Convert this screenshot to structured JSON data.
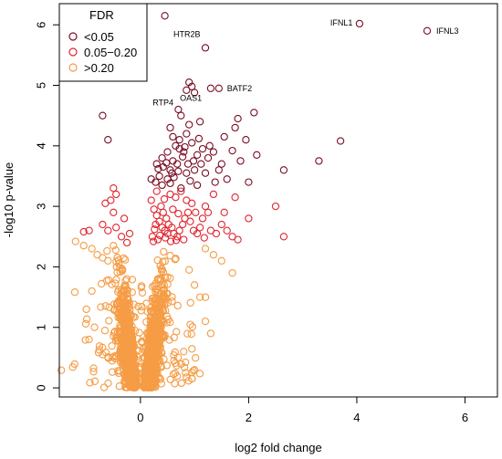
{
  "chart_data": {
    "type": "scatter",
    "title": "",
    "xlabel": "log2 fold change",
    "ylabel": "-log10 p-value",
    "xlim": [
      -1.5,
      6.6
    ],
    "ylim": [
      -0.15,
      6.35
    ],
    "xticks": [
      "0",
      "2",
      "4",
      "6"
    ],
    "yticks": [
      "0",
      "1",
      "2",
      "3",
      "4",
      "5",
      "6"
    ],
    "grid": false,
    "legend": {
      "title": "FDR",
      "position": "top-left",
      "entries": [
        {
          "label": "<0.05",
          "color": "#7a0d24"
        },
        {
          "label": "0.05−0.20",
          "color": "#e0252f"
        },
        {
          "label": ">0.20",
          "color": "#f59c45"
        }
      ]
    },
    "series": [
      {
        "name": "<0.05",
        "color": "#7a0d24",
        "points": [
          [
            0.45,
            6.15
          ],
          [
            4.05,
            6.02
          ],
          [
            5.3,
            5.9
          ],
          [
            1.2,
            5.62
          ],
          [
            0.9,
            5.05
          ],
          [
            0.95,
            4.98
          ],
          [
            0.85,
            4.92
          ],
          [
            1.0,
            4.88
          ],
          [
            1.3,
            4.95
          ],
          [
            1.45,
            4.95
          ],
          [
            0.7,
            4.6
          ],
          [
            0.75,
            4.5
          ],
          [
            2.1,
            4.55
          ],
          [
            1.8,
            4.45
          ],
          [
            1.75,
            4.3
          ],
          [
            1.1,
            4.4
          ],
          [
            0.85,
            4.2
          ],
          [
            0.9,
            4.35
          ],
          [
            0.55,
            4.3
          ],
          [
            0.6,
            4.15
          ],
          [
            3.7,
            4.08
          ],
          [
            1.95,
            4.1
          ],
          [
            1.55,
            4.15
          ],
          [
            0.65,
            4.0
          ],
          [
            0.72,
            3.95
          ],
          [
            0.8,
            3.9
          ],
          [
            0.95,
            4.05
          ],
          [
            1.05,
            3.85
          ],
          [
            0.5,
            3.9
          ],
          [
            0.4,
            3.8
          ],
          [
            0.6,
            3.75
          ],
          [
            0.78,
            3.82
          ],
          [
            0.88,
            3.7
          ],
          [
            1.15,
            3.95
          ],
          [
            1.25,
            3.8
          ],
          [
            1.35,
            3.9
          ],
          [
            2.15,
            3.85
          ],
          [
            1.85,
            3.75
          ],
          [
            3.3,
            3.75
          ],
          [
            0.3,
            3.7
          ],
          [
            0.42,
            3.65
          ],
          [
            0.55,
            3.6
          ],
          [
            0.7,
            3.58
          ],
          [
            0.85,
            3.55
          ],
          [
            1.0,
            3.6
          ],
          [
            1.12,
            3.7
          ],
          [
            1.45,
            3.6
          ],
          [
            2.65,
            3.6
          ],
          [
            0.35,
            3.5
          ],
          [
            0.5,
            3.45
          ],
          [
            0.62,
            3.48
          ],
          [
            0.92,
            3.42
          ],
          [
            1.2,
            3.55
          ],
          [
            1.6,
            3.45
          ],
          [
            0.28,
            3.4
          ],
          [
            0.4,
            3.35
          ],
          [
            0.55,
            3.38
          ],
          [
            0.75,
            3.3
          ],
          [
            1.05,
            3.35
          ],
          [
            1.38,
            3.4
          ],
          [
            2.0,
            3.4
          ],
          [
            0.2,
            3.45
          ],
          [
            0.68,
            3.7
          ],
          [
            0.98,
            3.75
          ],
          [
            1.28,
            4.0
          ],
          [
            0.72,
            4.1
          ],
          [
            -0.6,
            4.1
          ],
          [
            -0.7,
            4.5
          ],
          [
            0.82,
            3.98
          ],
          [
            1.08,
            4.12
          ],
          [
            0.58,
            3.55
          ],
          [
            1.5,
            3.7
          ],
          [
            1.7,
            3.92
          ],
          [
            0.48,
            3.72
          ],
          [
            0.33,
            3.62
          ]
        ]
      },
      {
        "name": "0.05−0.20",
        "color": "#e0252f",
        "points": [
          [
            -0.5,
            3.3
          ],
          [
            -0.45,
            3.2
          ],
          [
            -0.55,
            3.1
          ],
          [
            -0.65,
            3.05
          ],
          [
            -0.5,
            2.9
          ],
          [
            -0.7,
            2.7
          ],
          [
            -0.45,
            2.65
          ],
          [
            -0.95,
            2.6
          ],
          [
            -1.05,
            2.58
          ],
          [
            -0.3,
            2.8
          ],
          [
            -0.35,
            2.5
          ],
          [
            -0.6,
            2.6
          ],
          [
            -0.25,
            2.4
          ],
          [
            -0.2,
            2.55
          ],
          [
            0.2,
            3.1
          ],
          [
            0.25,
            2.95
          ],
          [
            0.3,
            2.85
          ],
          [
            0.35,
            2.75
          ],
          [
            0.4,
            2.65
          ],
          [
            0.45,
            2.6
          ],
          [
            0.5,
            2.55
          ],
          [
            0.22,
            2.5
          ],
          [
            0.28,
            2.7
          ],
          [
            0.32,
            2.45
          ],
          [
            0.38,
            3.0
          ],
          [
            0.42,
            2.9
          ],
          [
            0.48,
            2.8
          ],
          [
            0.52,
            2.7
          ],
          [
            0.58,
            2.65
          ],
          [
            0.62,
            2.55
          ],
          [
            0.68,
            2.5
          ],
          [
            0.72,
            2.6
          ],
          [
            0.78,
            2.7
          ],
          [
            0.82,
            2.8
          ],
          [
            0.88,
            2.9
          ],
          [
            0.92,
            2.75
          ],
          [
            0.98,
            2.6
          ],
          [
            1.05,
            2.55
          ],
          [
            1.1,
            2.65
          ],
          [
            1.15,
            2.8
          ],
          [
            1.2,
            3.0
          ],
          [
            1.25,
            2.9
          ],
          [
            1.3,
            2.6
          ],
          [
            1.4,
            2.55
          ],
          [
            1.5,
            2.7
          ],
          [
            1.55,
            2.9
          ],
          [
            1.6,
            2.6
          ],
          [
            1.7,
            2.5
          ],
          [
            1.8,
            2.45
          ],
          [
            2.0,
            2.8
          ],
          [
            2.5,
            3.0
          ],
          [
            2.65,
            2.5
          ],
          [
            1.75,
            3.15
          ],
          [
            0.55,
            3.2
          ],
          [
            0.65,
            3.15
          ],
          [
            0.75,
            3.25
          ],
          [
            0.85,
            3.1
          ],
          [
            0.95,
            3.05
          ],
          [
            1.35,
            3.2
          ],
          [
            0.3,
            3.25
          ],
          [
            0.24,
            2.42
          ],
          [
            0.36,
            2.52
          ],
          [
            0.46,
            2.48
          ],
          [
            0.56,
            2.42
          ],
          [
            0.66,
            2.44
          ],
          [
            1.18,
            2.48
          ],
          [
            0.44,
            3.12
          ],
          [
            0.6,
            2.95
          ],
          [
            0.7,
            2.88
          ],
          [
            0.8,
            2.45
          ],
          [
            1.02,
            2.9
          ],
          [
            0.26,
            2.62
          ]
        ]
      },
      {
        "name": ">0.20",
        "color": "#f59c45",
        "seed": 7,
        "count": 1800,
        "points": [
          [
            -1.2,
            2.42
          ],
          [
            -1.05,
            2.35
          ],
          [
            -0.9,
            2.3
          ],
          [
            -0.8,
            2.2
          ],
          [
            -0.7,
            2.15
          ],
          [
            -0.6,
            2.1
          ],
          [
            -0.5,
            2.35
          ],
          [
            -0.4,
            2.05
          ],
          [
            1.2,
            2.3
          ],
          [
            1.35,
            2.2
          ],
          [
            1.5,
            2.1
          ],
          [
            1.7,
            1.9
          ],
          [
            0.9,
            1.95
          ],
          [
            1.0,
            1.7
          ],
          [
            1.1,
            1.5
          ],
          [
            -0.9,
            1.6
          ],
          [
            -1.0,
            1.3
          ],
          [
            -0.85,
            1.0
          ],
          [
            -0.95,
            0.8
          ],
          [
            1.2,
            1.1
          ],
          [
            1.3,
            0.9
          ],
          [
            0.8,
            0.6
          ],
          [
            -0.7,
            0.55
          ]
        ]
      }
    ],
    "annotations": [
      {
        "text": "IFNL1",
        "x": 4.05,
        "y": 6.02
      },
      {
        "text": "IFNL3",
        "x": 5.3,
        "y": 5.9
      },
      {
        "text": "HTR2B",
        "x": 1.2,
        "y": 5.62
      },
      {
        "text": "OAS1",
        "x": 1.0,
        "y": 4.88
      },
      {
        "text": "RTP4",
        "x": 0.9,
        "y": 4.85
      },
      {
        "text": "BATF2",
        "x": 1.45,
        "y": 4.95
      }
    ]
  }
}
